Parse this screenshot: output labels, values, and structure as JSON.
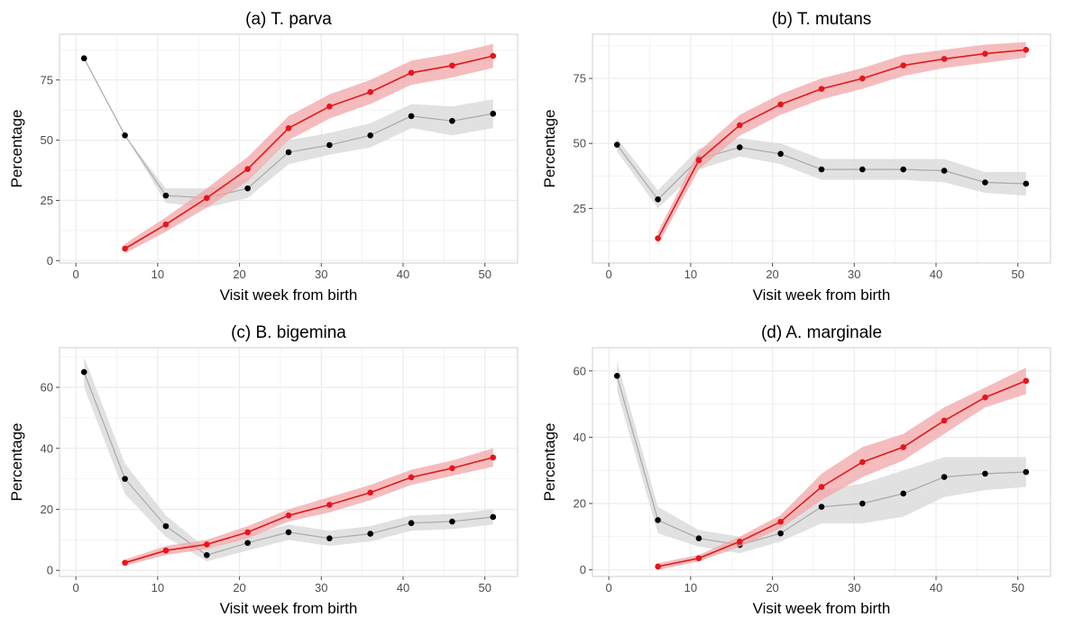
{
  "figure": {
    "xlabel": "Visit week from birth",
    "ylabel": "Percentage"
  },
  "colors": {
    "series_black": "#000000",
    "series_black_line": "#a9a9a9",
    "series_black_band": "#dcdcdc",
    "series_red": "#e8141c",
    "series_red_line": "#e01a1a",
    "series_red_band": "#f2a5a8",
    "panel_bg": "#ffffff",
    "grid": "#ececec",
    "frame": "#cfcfcf",
    "tick_text": "#4d4d4d"
  },
  "chart_data": [
    {
      "type": "line",
      "title": "(a) T. parva",
      "xlabel": "Visit week from birth",
      "ylabel": "Percentage",
      "xlim": [
        -2,
        54
      ],
      "ylim": [
        -1,
        94
      ],
      "xticks": [
        0,
        10,
        20,
        30,
        40,
        50
      ],
      "yticks": [
        0,
        25,
        50,
        75
      ],
      "grid": true,
      "series": [
        {
          "color": "black",
          "x": [
            1,
            6,
            11,
            16,
            21,
            26,
            31,
            36,
            41,
            46,
            51
          ],
          "y": [
            84,
            52,
            27,
            26,
            30,
            45,
            48,
            52,
            60,
            58,
            61
          ],
          "lower": [
            84,
            52,
            24,
            22,
            26,
            40,
            44,
            47,
            55,
            52,
            55
          ],
          "upper": [
            84,
            52,
            30,
            30,
            34,
            50,
            53,
            57,
            65,
            64,
            67
          ]
        },
        {
          "color": "red",
          "x": [
            6,
            11,
            16,
            21,
            26,
            31,
            36,
            41,
            46,
            51
          ],
          "y": [
            5,
            15,
            26,
            38,
            55,
            64,
            70,
            78,
            81,
            85
          ],
          "lower": [
            3,
            12,
            22,
            33,
            50,
            59,
            65,
            73,
            76,
            80
          ],
          "upper": [
            7,
            18,
            30,
            43,
            60,
            69,
            75,
            83,
            86,
            90
          ]
        }
      ]
    },
    {
      "type": "line",
      "title": "(b) T. mutans",
      "xlabel": "Visit week from birth",
      "ylabel": "Percentage",
      "xlim": [
        -2,
        54
      ],
      "ylim": [
        4,
        92
      ],
      "xticks": [
        0,
        10,
        20,
        30,
        40,
        50
      ],
      "yticks": [
        25,
        50,
        75
      ],
      "grid": true,
      "series": [
        {
          "color": "black",
          "x": [
            1,
            6,
            11,
            16,
            21,
            26,
            31,
            36,
            41,
            46,
            51
          ],
          "y": [
            49.5,
            28.5,
            44,
            48.5,
            46,
            40,
            40,
            40,
            39.5,
            35,
            34.5
          ],
          "lower": [
            47,
            25,
            40,
            45,
            42,
            36,
            36,
            36,
            35,
            31,
            30
          ],
          "upper": [
            52,
            32,
            48,
            52,
            50,
            44,
            44,
            44,
            44,
            39,
            39
          ]
        },
        {
          "color": "red",
          "x": [
            6,
            11,
            16,
            21,
            26,
            31,
            36,
            41,
            46,
            51
          ],
          "y": [
            13.5,
            43.5,
            57,
            65,
            71,
            75,
            80,
            82.5,
            84.5,
            86
          ],
          "lower": [
            11,
            40,
            53,
            61,
            67,
            71,
            76,
            79,
            81,
            83
          ],
          "upper": [
            16,
            47,
            61,
            69,
            75,
            79,
            84,
            86,
            88,
            89
          ]
        }
      ]
    },
    {
      "type": "line",
      "title": "(c) B. bigemina",
      "xlabel": "Visit week from birth",
      "ylabel": "Percentage",
      "xlim": [
        -2,
        54
      ],
      "ylim": [
        -2,
        73
      ],
      "xticks": [
        0,
        10,
        20,
        30,
        40,
        50
      ],
      "yticks": [
        0,
        20,
        40,
        60
      ],
      "grid": true,
      "series": [
        {
          "color": "black",
          "x": [
            1,
            6,
            11,
            16,
            21,
            26,
            31,
            36,
            41,
            46,
            51
          ],
          "y": [
            65,
            30,
            14.5,
            5,
            9,
            12.5,
            10.5,
            12,
            15.5,
            16,
            17.5
          ],
          "lower": [
            60,
            25,
            11,
            3,
            6.5,
            10,
            8,
            9.5,
            13,
            13.5,
            15
          ],
          "upper": [
            70,
            35,
            18,
            7,
            11.5,
            15,
            13,
            14.5,
            18,
            18.5,
            20
          ]
        },
        {
          "color": "red",
          "x": [
            6,
            11,
            16,
            21,
            26,
            31,
            36,
            41,
            46,
            51
          ],
          "y": [
            2.5,
            6.5,
            8.5,
            12.5,
            18,
            21.5,
            25.5,
            30.5,
            33.5,
            37
          ],
          "lower": [
            1.5,
            5,
            7,
            10.5,
            16,
            19,
            23,
            28,
            31,
            34
          ],
          "upper": [
            3.5,
            8,
            10,
            14.5,
            20,
            24,
            28,
            33,
            36,
            40
          ]
        }
      ]
    },
    {
      "type": "line",
      "title": "(d) A. marginale",
      "xlabel": "Visit week from birth",
      "ylabel": "Percentage",
      "xlim": [
        -2,
        54
      ],
      "ylim": [
        -2,
        67
      ],
      "xticks": [
        0,
        10,
        20,
        30,
        40,
        50
      ],
      "yticks": [
        0,
        20,
        40,
        60
      ],
      "grid": true,
      "series": [
        {
          "color": "black",
          "x": [
            1,
            6,
            11,
            16,
            21,
            26,
            31,
            36,
            41,
            46,
            51
          ],
          "y": [
            58.5,
            15,
            9.5,
            7.5,
            11,
            19,
            20,
            23,
            28,
            29,
            29.5
          ],
          "lower": [
            54,
            11,
            7,
            5,
            8.5,
            14,
            14,
            16,
            22,
            24,
            25
          ],
          "upper": [
            63,
            19,
            12,
            10,
            13.5,
            24,
            26,
            30,
            34,
            34,
            34
          ]
        },
        {
          "color": "red",
          "x": [
            6,
            11,
            16,
            21,
            26,
            31,
            36,
            41,
            46,
            51
          ],
          "y": [
            1,
            3.5,
            8.5,
            14.5,
            25,
            32.5,
            37,
            45,
            52,
            57
          ],
          "lower": [
            0,
            2.5,
            7,
            12.5,
            21,
            28,
            33,
            41,
            49,
            53
          ],
          "upper": [
            2,
            4.5,
            10,
            16.5,
            29,
            37,
            41,
            49,
            55,
            61
          ]
        }
      ]
    }
  ]
}
